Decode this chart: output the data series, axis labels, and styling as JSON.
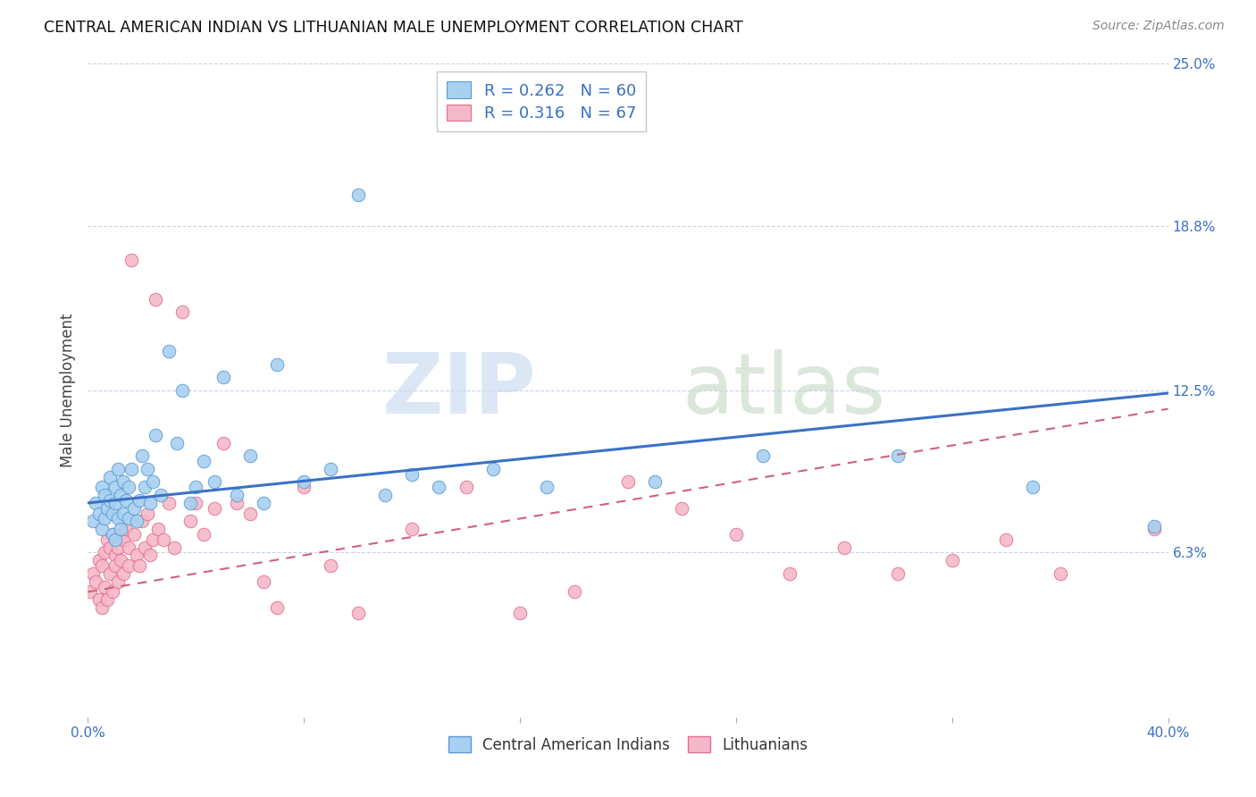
{
  "title": "CENTRAL AMERICAN INDIAN VS LITHUANIAN MALE UNEMPLOYMENT CORRELATION CHART",
  "source": "Source: ZipAtlas.com",
  "ylabel": "Male Unemployment",
  "xlim": [
    0.0,
    0.4
  ],
  "ylim": [
    0.0,
    0.25
  ],
  "yticks": [
    0.063,
    0.125,
    0.188,
    0.25
  ],
  "ytick_labels": [
    "6.3%",
    "12.5%",
    "18.8%",
    "25.0%"
  ],
  "xticks": [
    0.0,
    0.08,
    0.16,
    0.24,
    0.32,
    0.4
  ],
  "xtick_labels": [
    "0.0%",
    "",
    "",
    "",
    "",
    "40.0%"
  ],
  "blue_color": "#a8d0f0",
  "blue_edge_color": "#5b9bd5",
  "pink_color": "#f5b8c8",
  "pink_edge_color": "#e07090",
  "blue_line_color": "#3a72c4",
  "pink_line_color": "#d06080",
  "blue_line_y0": 0.082,
  "blue_line_y1": 0.124,
  "pink_line_y0": 0.048,
  "pink_line_y1": 0.118,
  "blue_scatter_x": [
    0.002,
    0.003,
    0.004,
    0.005,
    0.005,
    0.006,
    0.006,
    0.007,
    0.008,
    0.008,
    0.009,
    0.009,
    0.01,
    0.01,
    0.01,
    0.011,
    0.011,
    0.012,
    0.012,
    0.013,
    0.013,
    0.014,
    0.015,
    0.015,
    0.016,
    0.017,
    0.018,
    0.019,
    0.02,
    0.021,
    0.022,
    0.023,
    0.024,
    0.025,
    0.027,
    0.03,
    0.033,
    0.035,
    0.038,
    0.04,
    0.043,
    0.047,
    0.05,
    0.055,
    0.06,
    0.065,
    0.07,
    0.08,
    0.09,
    0.1,
    0.11,
    0.12,
    0.13,
    0.15,
    0.17,
    0.21,
    0.25,
    0.3,
    0.35,
    0.395
  ],
  "blue_scatter_y": [
    0.075,
    0.082,
    0.078,
    0.088,
    0.072,
    0.085,
    0.076,
    0.08,
    0.083,
    0.092,
    0.078,
    0.07,
    0.088,
    0.082,
    0.068,
    0.095,
    0.076,
    0.085,
    0.072,
    0.09,
    0.078,
    0.083,
    0.076,
    0.088,
    0.095,
    0.08,
    0.075,
    0.083,
    0.1,
    0.088,
    0.095,
    0.082,
    0.09,
    0.108,
    0.085,
    0.14,
    0.105,
    0.125,
    0.082,
    0.088,
    0.098,
    0.09,
    0.13,
    0.085,
    0.1,
    0.082,
    0.135,
    0.09,
    0.095,
    0.2,
    0.085,
    0.093,
    0.088,
    0.095,
    0.088,
    0.09,
    0.1,
    0.1,
    0.088,
    0.073
  ],
  "pink_scatter_x": [
    0.001,
    0.002,
    0.003,
    0.004,
    0.004,
    0.005,
    0.005,
    0.006,
    0.006,
    0.007,
    0.007,
    0.008,
    0.008,
    0.009,
    0.009,
    0.01,
    0.01,
    0.011,
    0.011,
    0.012,
    0.012,
    0.013,
    0.013,
    0.014,
    0.015,
    0.015,
    0.016,
    0.017,
    0.018,
    0.019,
    0.02,
    0.021,
    0.022,
    0.023,
    0.024,
    0.025,
    0.026,
    0.028,
    0.03,
    0.032,
    0.035,
    0.038,
    0.04,
    0.043,
    0.047,
    0.05,
    0.055,
    0.06,
    0.065,
    0.07,
    0.08,
    0.09,
    0.1,
    0.12,
    0.14,
    0.16,
    0.18,
    0.2,
    0.22,
    0.24,
    0.26,
    0.28,
    0.3,
    0.32,
    0.34,
    0.36,
    0.395
  ],
  "pink_scatter_y": [
    0.048,
    0.055,
    0.052,
    0.06,
    0.045,
    0.058,
    0.042,
    0.063,
    0.05,
    0.068,
    0.045,
    0.065,
    0.055,
    0.07,
    0.048,
    0.062,
    0.058,
    0.065,
    0.052,
    0.07,
    0.06,
    0.068,
    0.055,
    0.072,
    0.058,
    0.065,
    0.175,
    0.07,
    0.062,
    0.058,
    0.075,
    0.065,
    0.078,
    0.062,
    0.068,
    0.16,
    0.072,
    0.068,
    0.082,
    0.065,
    0.155,
    0.075,
    0.082,
    0.07,
    0.08,
    0.105,
    0.082,
    0.078,
    0.052,
    0.042,
    0.088,
    0.058,
    0.04,
    0.072,
    0.088,
    0.04,
    0.048,
    0.09,
    0.08,
    0.07,
    0.055,
    0.065,
    0.055,
    0.06,
    0.068,
    0.055,
    0.072
  ]
}
